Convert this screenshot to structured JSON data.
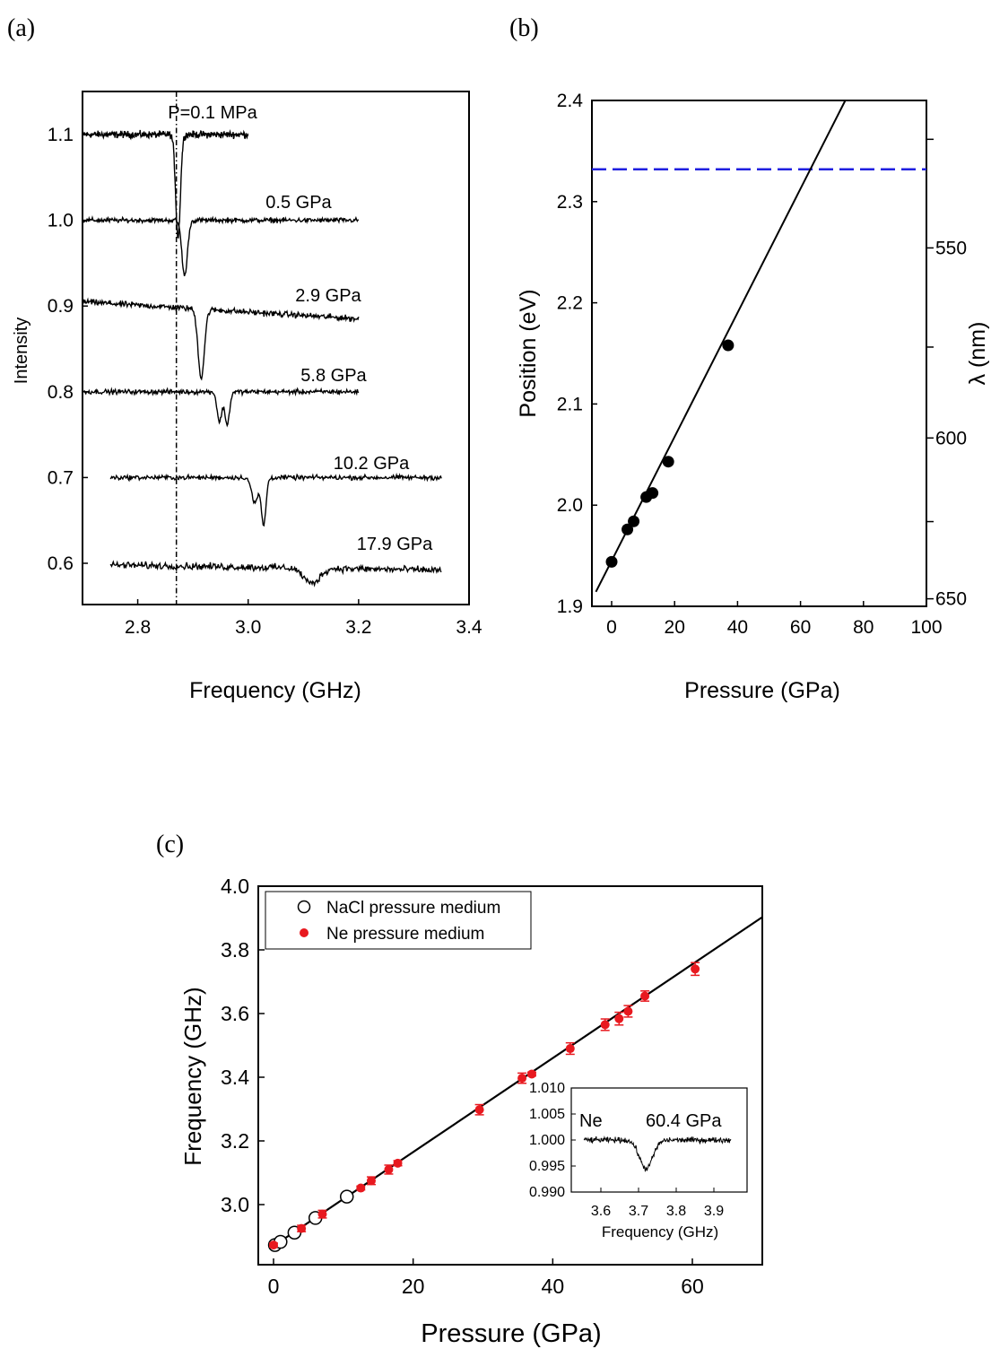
{
  "chart_data": [
    {
      "panel": "(a)",
      "type": "line",
      "xlabel": "Frequency (GHz)",
      "ylabel": "Intensity",
      "xlim": [
        2.7,
        3.4
      ],
      "ylim": [
        0.56,
        1.15
      ],
      "x_ticks": [
        "2.8",
        "3.0",
        "3.2",
        "3.4"
      ],
      "y_ticks": [
        "0.6",
        "0.7",
        "0.8",
        "0.9",
        "1.0",
        "1.1"
      ],
      "reference_line_x": 2.87,
      "series": [
        {
          "name": "P=0.1 MPa",
          "x_range": [
            2.7,
            3.0
          ],
          "baseline": 1.1,
          "dips": [
            {
              "center": 2.873,
              "depth": 0.12,
              "width": 0.006
            }
          ],
          "tilt": 0.0
        },
        {
          "name": "0.5 GPa",
          "x_range": [
            2.7,
            3.2
          ],
          "baseline": 1.0,
          "dips": [
            {
              "center": 2.885,
              "depth": 0.065,
              "width": 0.007
            }
          ],
          "tilt": 0.0
        },
        {
          "name": "2.9 GPa",
          "x_range": [
            2.7,
            3.2
          ],
          "baseline": 0.905,
          "dips": [
            {
              "center": 2.915,
              "depth": 0.08,
              "width": 0.008
            }
          ],
          "tilt": -0.02
        },
        {
          "name": "5.8 GPa",
          "x_range": [
            2.7,
            3.2
          ],
          "baseline": 0.8,
          "dips": [
            {
              "center": 2.948,
              "depth": 0.035,
              "width": 0.006
            },
            {
              "center": 2.962,
              "depth": 0.038,
              "width": 0.006
            }
          ],
          "tilt": 0.0
        },
        {
          "name": "10.2 GPa",
          "x_range": [
            2.75,
            3.35
          ],
          "baseline": 0.7,
          "dips": [
            {
              "center": 3.012,
              "depth": 0.03,
              "width": 0.008
            },
            {
              "center": 3.028,
              "depth": 0.055,
              "width": 0.006
            }
          ],
          "tilt": 0.0
        },
        {
          "name": "17.9 GPa",
          "x_range": [
            2.75,
            3.35
          ],
          "baseline": 0.598,
          "dips": [
            {
              "center": 3.115,
              "depth": 0.018,
              "width": 0.02
            }
          ],
          "tilt": -0.006
        }
      ]
    },
    {
      "panel": "(b)",
      "type": "scatter",
      "xlabel": "Pressure (GPa)",
      "ylabel": "Position (eV)",
      "ylabel_right": "λ (nm)",
      "xlim": [
        -5,
        100
      ],
      "ylim": [
        1.9,
        2.4
      ],
      "x_ticks": [
        "0",
        "20",
        "40",
        "60",
        "80",
        "100"
      ],
      "y_ticks": [
        "1.9",
        "2.0",
        "2.1",
        "2.2",
        "2.3",
        "2.4"
      ],
      "right_ticks": [
        "550",
        "600",
        "650"
      ],
      "points": [
        [
          0,
          1.944
        ],
        [
          5,
          1.976
        ],
        [
          7,
          1.984
        ],
        [
          11,
          2.008
        ],
        [
          13,
          2.012
        ],
        [
          18,
          2.043
        ],
        [
          37,
          2.158
        ]
      ],
      "fit_line": {
        "slope": 0.00613,
        "intercept": 1.945
      },
      "dashed_line_y": 2.332,
      "dashed_line_color": "#1f1fe0"
    },
    {
      "panel": "(c)",
      "type": "scatter",
      "xlabel": "Pressure (GPa)",
      "ylabel": "Frequency (GHz)",
      "xlim": [
        -3,
        70
      ],
      "ylim": [
        2.84,
        4.0
      ],
      "x_ticks": [
        "0",
        "20",
        "40",
        "60"
      ],
      "y_ticks": [
        "3.0",
        "3.2",
        "3.4",
        "3.6",
        "3.8",
        "4.0"
      ],
      "fit_line": {
        "slope": 0.01475,
        "intercept": 2.87
      },
      "series": [
        {
          "name": "NaCl pressure medium",
          "marker": "open-circle",
          "color": "#000000",
          "points": [
            [
              0.2,
              2.873
            ],
            [
              1.0,
              2.883
            ],
            [
              3.0,
              2.912
            ],
            [
              6.0,
              2.958
            ],
            [
              10.5,
              3.025
            ]
          ]
        },
        {
          "name": "Ne pressure medium",
          "marker": "filled-circle",
          "color": "#e8191f",
          "points": [
            [
              0,
              2.873
            ],
            [
              4,
              2.925
            ],
            [
              7,
              2.97
            ],
            [
              12.5,
              3.052
            ],
            [
              14,
              3.075
            ],
            [
              16.5,
              3.11
            ],
            [
              17.8,
              3.13
            ],
            [
              29.5,
              3.298
            ],
            [
              35.6,
              3.397
            ],
            [
              37,
              3.41
            ],
            [
              42.5,
              3.49
            ],
            [
              47.5,
              3.565
            ],
            [
              49.5,
              3.584
            ],
            [
              50.8,
              3.607
            ],
            [
              53.2,
              3.655
            ],
            [
              60.4,
              3.74
            ]
          ],
          "errors": [
            0.006,
            0.01,
            0.012,
            0.006,
            0.012,
            0.014,
            0.008,
            0.016,
            0.016,
            0.006,
            0.018,
            0.018,
            0.02,
            0.018,
            0.016,
            0.02
          ]
        }
      ],
      "inset": {
        "xlabel": "Frequency (GHz)",
        "xlim": [
          3.55,
          3.95
        ],
        "ylim": [
          0.99,
          1.01
        ],
        "x_ticks": [
          "3.6",
          "3.7",
          "3.8",
          "3.9"
        ],
        "y_ticks": [
          "1.010",
          "1.005",
          "1.000",
          "0.995",
          "0.990"
        ],
        "left_label": "Ne",
        "right_label": "60.4 GPa",
        "trace": {
          "x_range": [
            3.55,
            3.95
          ],
          "baseline": 1.0,
          "dips": [
            {
              "center": 3.72,
              "depth": 0.0055,
              "width": 0.025
            }
          ]
        }
      }
    }
  ]
}
